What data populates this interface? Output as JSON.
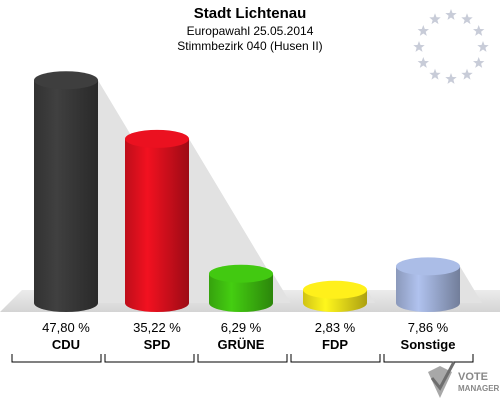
{
  "header": {
    "title": "Stadt Lichtenau",
    "subtitle1": "Europawahl 25.05.2014",
    "subtitle2": "Stimmbezirk 040 (Husen II)"
  },
  "logo": {
    "line1": "VOTE",
    "line2": "MANAGER",
    "icon": "vote-manager-logo-icon"
  },
  "colors": {
    "CDU": "#3b3b3b",
    "SPD": "#e0101e",
    "GRÜNE": "#3fbf10",
    "FDP": "#f5e51a",
    "Sonstige": "#a3b4dc",
    "eu_stars": "#c8ccd8",
    "floor": "#dedede"
  },
  "chart_data": {
    "type": "bar",
    "title": "Stadt Lichtenau",
    "subtitle": "Europawahl 25.05.2014 — Stimmbezirk 040 (Husen II)",
    "categories": [
      "CDU",
      "SPD",
      "GRÜNE",
      "FDP",
      "Sonstige"
    ],
    "values": [
      47.8,
      35.22,
      6.29,
      2.83,
      7.86
    ],
    "value_labels": [
      "47,80 %",
      "35,22 %",
      "6,29 %",
      "2,83 %",
      "7,86 %"
    ],
    "ylim": [
      0,
      50
    ],
    "grid": false,
    "legend": "none"
  }
}
